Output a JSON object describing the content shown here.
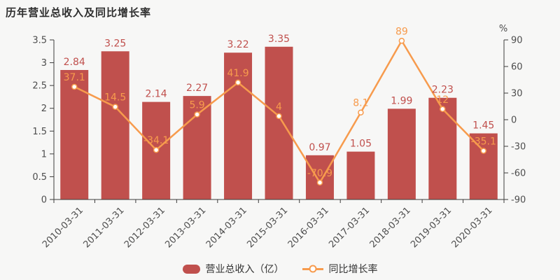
{
  "title": "历年营业总收入及同比增长率",
  "chart_data": {
    "type": "bar+line",
    "categories": [
      "2010-03-31",
      "2011-03-31",
      "2012-03-31",
      "2013-03-31",
      "2014-03-31",
      "2015-03-31",
      "2016-03-31",
      "2017-03-31",
      "2018-03-31",
      "2019-03-31",
      "2020-03-31"
    ],
    "series": [
      {
        "name": "营业总收入（亿）",
        "type": "bar",
        "axis": "left",
        "values": [
          2.84,
          3.25,
          2.14,
          2.27,
          3.22,
          3.35,
          0.97,
          1.05,
          1.99,
          2.23,
          1.45
        ]
      },
      {
        "name": "同比增长率",
        "type": "line",
        "axis": "right",
        "values": [
          37.1,
          14.5,
          -34.1,
          5.9,
          41.9,
          4,
          -70.9,
          8.1,
          89,
          12,
          -35.1
        ]
      }
    ],
    "left_axis": {
      "min": 0,
      "max": 3.5,
      "step": 0.5,
      "ticks": [
        "0",
        "0.5",
        "1",
        "1.5",
        "2",
        "2.5",
        "3",
        "3.5"
      ]
    },
    "right_axis": {
      "min": -90,
      "max": 90,
      "step": 30,
      "unit": "%",
      "ticks": [
        "-90",
        "-60",
        "-30",
        "0",
        "30",
        "60",
        "90"
      ]
    },
    "legend_position": "bottom",
    "grid": false,
    "x_label_rotation": -45
  },
  "colors": {
    "background": "#f7f7f6",
    "bar": "#c0504d",
    "bar_label": "#c0504d",
    "line": "#f79b4d",
    "line_label": "#f79b4d",
    "marker_fill": "#ffffff",
    "axis": "#3c3c3c",
    "tick_label": "#4d4d4d",
    "title": "#2e2e2e",
    "legend_text": "#333333"
  }
}
